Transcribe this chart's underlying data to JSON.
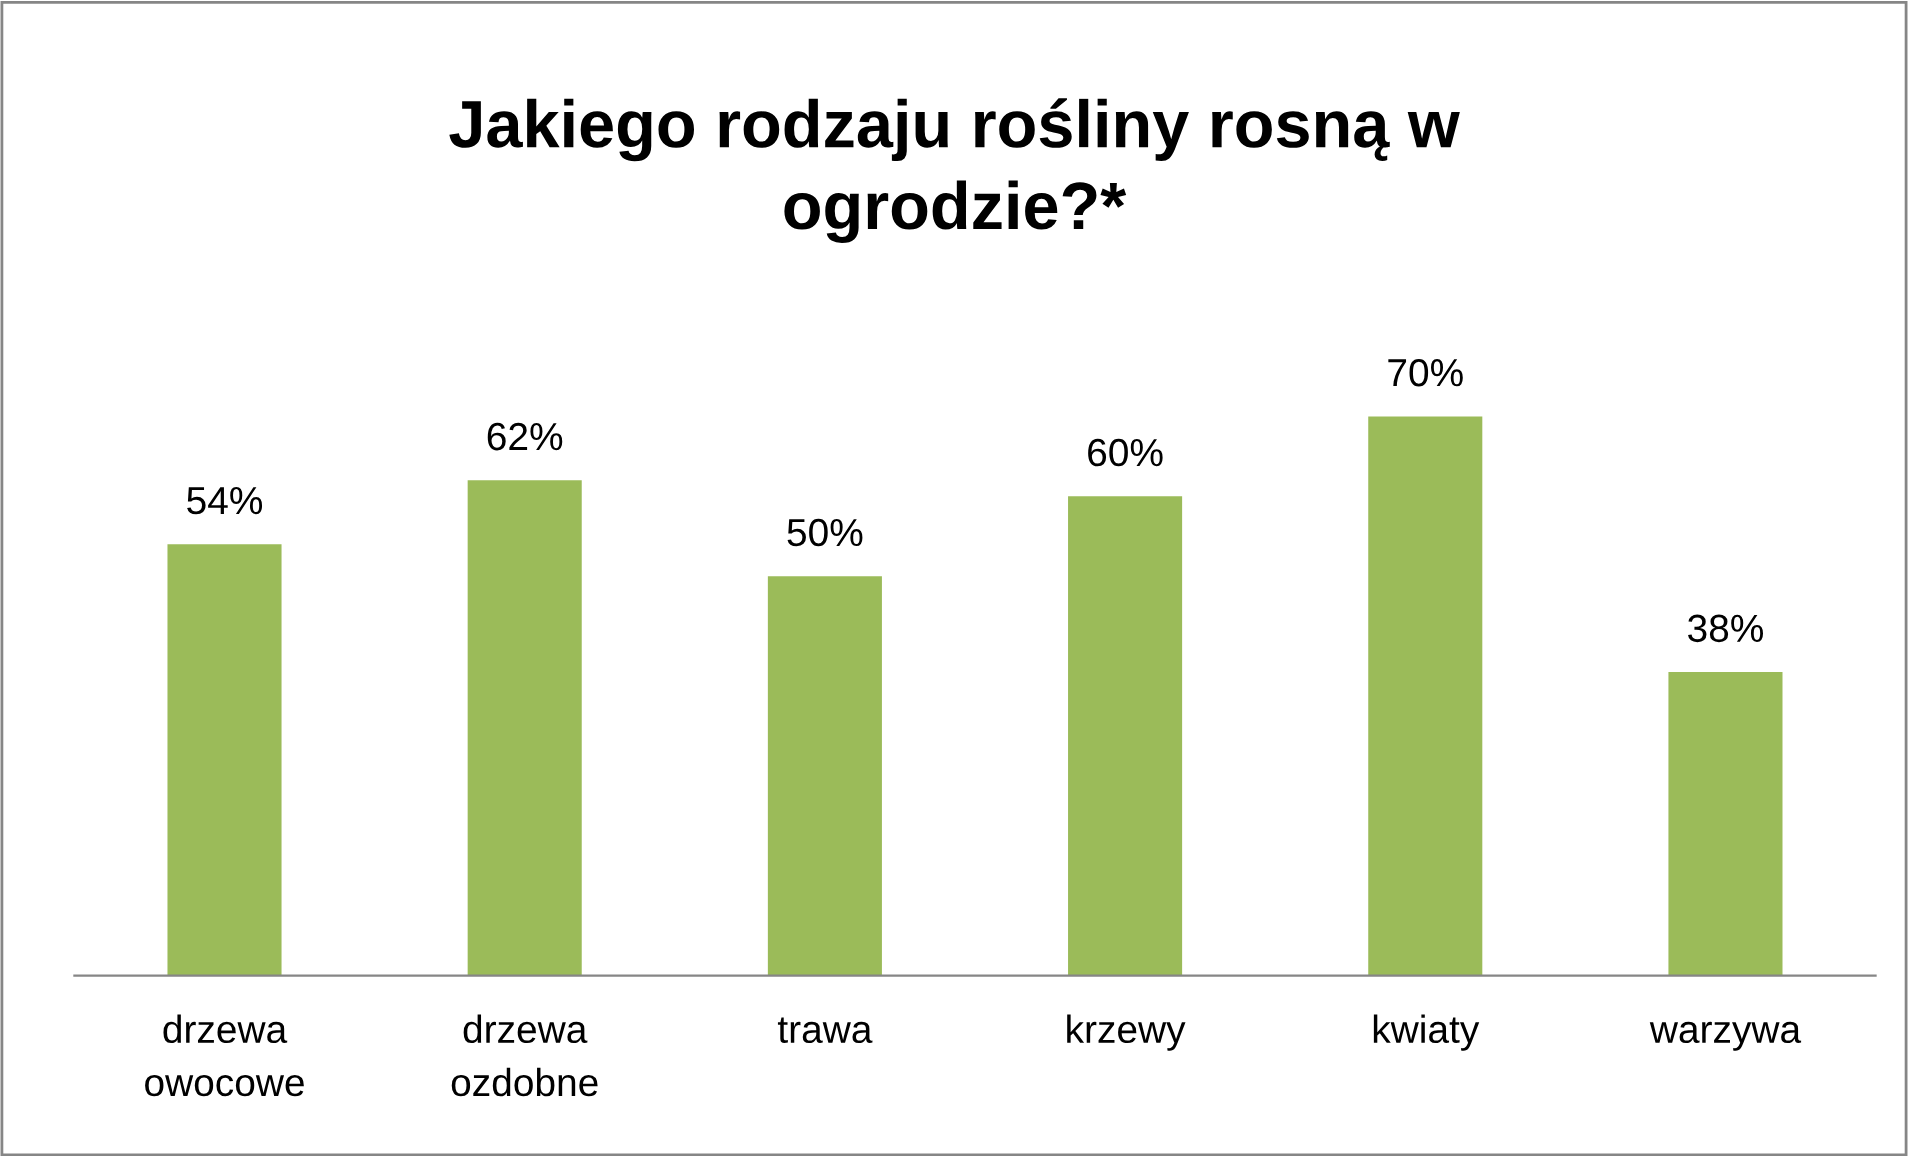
{
  "chart_data": {
    "type": "bar",
    "title": "Jakiego rodzaju rośliny rosną w\nogrodzie?*",
    "categories": [
      "drzewa\nowocowe",
      "drzewa\nozdobne",
      "trawa",
      "krzewy",
      "kwiaty",
      "warzywa"
    ],
    "values": [
      54,
      62,
      50,
      60,
      70,
      38
    ],
    "value_labels": [
      "54%",
      "62%",
      "50%",
      "60%",
      "70%",
      "38%"
    ],
    "color": "#9bbb59",
    "tick_labels": "x",
    "grid": false,
    "legend": false
  }
}
